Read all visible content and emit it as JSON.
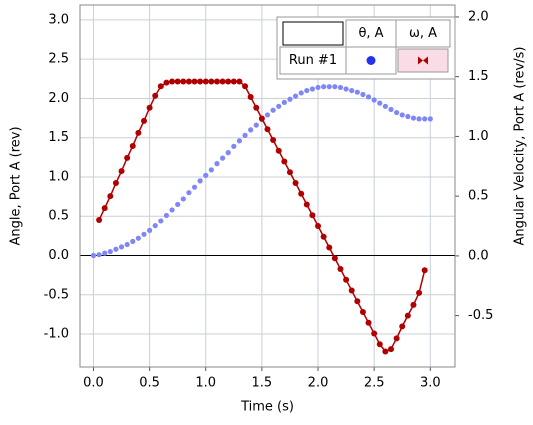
{
  "chart_data": {
    "type": "scatter",
    "xlabel": "Time (s)",
    "ylabel": "Angle, Port A (rev)",
    "y2label": "Angular Velocity, Port A (rev/s)",
    "legend_row": "Run #1",
    "xlim": [
      -0.12,
      3.22
    ],
    "ylim": [
      -1.42,
      3.19
    ],
    "y2lim": [
      -0.93,
      2.1
    ],
    "xticks": [
      {
        "value": 0,
        "label": "0.0"
      },
      0.5,
      {
        "value": 1,
        "label": "1.0"
      },
      1.5,
      {
        "value": 2,
        "label": "2.0"
      },
      2.5,
      {
        "value": 3,
        "label": "3.0"
      }
    ],
    "yticks": [
      {
        "value": -1,
        "label": "-1.0"
      },
      -0.5,
      {
        "value": 0,
        "label": "0.0"
      },
      0.5,
      {
        "value": 1,
        "label": "1.0"
      },
      1.5,
      {
        "value": 2,
        "label": "2.0"
      },
      2.5,
      {
        "value": 3,
        "label": "3.0"
      }
    ],
    "y2ticks": [
      -0.5,
      {
        "value": 0,
        "label": "0.0"
      },
      0.5,
      {
        "value": 1,
        "label": "1.0"
      },
      1.5,
      {
        "value": 2,
        "label": "2.0"
      }
    ],
    "grid": true,
    "series": [
      {
        "name": "θ, A",
        "color": "#7f86f5",
        "axis": "y",
        "x": [
          0,
          0.05,
          0.1,
          0.15,
          0.2,
          0.25,
          0.3,
          0.35,
          0.4,
          0.45,
          0.5,
          0.55,
          0.6,
          0.65,
          0.7,
          0.75,
          0.8,
          0.85,
          0.9,
          0.95,
          1,
          1.05,
          1.1,
          1.15,
          1.2,
          1.25,
          1.3,
          1.35,
          1.4,
          1.45,
          1.5,
          1.55,
          1.6,
          1.65,
          1.7,
          1.75,
          1.8,
          1.85,
          1.9,
          1.95,
          2,
          2.05,
          2.1,
          2.15,
          2.2,
          2.25,
          2.3,
          2.35,
          2.4,
          2.45,
          2.5,
          2.55,
          2.6,
          2.65,
          2.7,
          2.75,
          2.8,
          2.85,
          2.9,
          2.95,
          3
        ],
        "values": [
          0,
          0.01,
          0.03,
          0.05,
          0.08,
          0.11,
          0.14,
          0.18,
          0.22,
          0.27,
          0.32,
          0.38,
          0.44,
          0.51,
          0.58,
          0.65,
          0.72,
          0.8,
          0.87,
          0.95,
          1.02,
          1.09,
          1.17,
          1.24,
          1.31,
          1.39,
          1.46,
          1.53,
          1.6,
          1.66,
          1.73,
          1.79,
          1.85,
          1.9,
          1.95,
          1.99,
          2.03,
          2.07,
          2.1,
          2.12,
          2.14,
          2.15,
          2.15,
          2.15,
          2.14,
          2.12,
          2.1,
          2.08,
          2.05,
          2.02,
          1.98,
          1.94,
          1.9,
          1.86,
          1.82,
          1.79,
          1.77,
          1.75,
          1.74,
          1.74,
          1.74
        ]
      },
      {
        "name": "ω, A",
        "color": "#b00000",
        "axis": "y2",
        "x": [
          0.05,
          0.1,
          0.15,
          0.2,
          0.25,
          0.3,
          0.35,
          0.4,
          0.45,
          0.5,
          0.55,
          0.6,
          0.65,
          0.7,
          0.75,
          0.8,
          0.85,
          0.9,
          0.95,
          1,
          1.05,
          1.1,
          1.15,
          1.2,
          1.25,
          1.3,
          1.35,
          1.4,
          1.45,
          1.5,
          1.55,
          1.6,
          1.65,
          1.7,
          1.75,
          1.8,
          1.85,
          1.9,
          1.95,
          2,
          2.05,
          2.1,
          2.15,
          2.2,
          2.25,
          2.3,
          2.35,
          2.4,
          2.45,
          2.5,
          2.55,
          2.6,
          2.65,
          2.7,
          2.75,
          2.8,
          2.85,
          2.9,
          2.95
        ],
        "values": [
          0.3,
          0.4,
          0.5,
          0.61,
          0.71,
          0.82,
          0.92,
          1.03,
          1.13,
          1.24,
          1.34,
          1.42,
          1.45,
          1.46,
          1.46,
          1.46,
          1.46,
          1.46,
          1.46,
          1.46,
          1.46,
          1.46,
          1.46,
          1.46,
          1.46,
          1.46,
          1.42,
          1.33,
          1.24,
          1.15,
          1.06,
          0.97,
          0.88,
          0.79,
          0.7,
          0.61,
          0.52,
          0.43,
          0.34,
          0.25,
          0.16,
          0.07,
          -0.02,
          -0.11,
          -0.2,
          -0.29,
          -0.38,
          -0.47,
          -0.56,
          -0.65,
          -0.74,
          -0.8,
          -0.78,
          -0.69,
          -0.59,
          -0.5,
          -0.41,
          -0.31,
          -0.12
        ]
      }
    ]
  }
}
